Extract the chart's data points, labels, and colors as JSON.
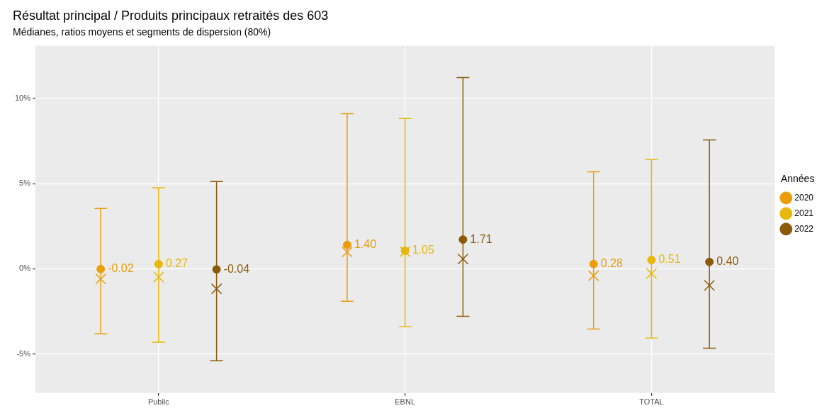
{
  "chart_data": {
    "type": "scatter",
    "title": "Résultat principal / Produits principaux retraités des 603",
    "subtitle": "Médianes, ratios moyens et segments de dispersion (80%)",
    "categories": [
      "Public",
      "EBNL",
      "TOTAL"
    ],
    "series": [
      {
        "name": "2020",
        "color": "#eb9d0b",
        "marker": "circle",
        "values": [
          -0.02,
          1.4,
          0.28
        ],
        "value_labels": [
          "-0.02",
          "1.40",
          "0.28"
        ],
        "errors": [
          [
            -3.82,
            3.54
          ],
          [
            -1.91,
            9.1
          ],
          [
            -3.54,
            5.69
          ]
        ]
      },
      {
        "color": "#eb9d0b",
        "marker": "cross",
        "values": [
          -0.6,
          0.98,
          -0.41
        ]
      },
      {
        "name": "2021",
        "color": "#e8b80c",
        "marker": "circle",
        "values": [
          0.27,
          1.05,
          0.51
        ],
        "value_labels": [
          "0.27",
          "1.05",
          "0.51"
        ],
        "errors": [
          [
            -4.31,
            4.76
          ],
          [
            -3.41,
            8.82
          ],
          [
            -4.07,
            6.42
          ]
        ]
      },
      {
        "color": "#e8b80c",
        "marker": "cross",
        "values": [
          -0.49,
          1.0,
          -0.28
        ]
      },
      {
        "name": "2022",
        "color": "#8c5a0a",
        "marker": "circle",
        "values": [
          -0.04,
          1.71,
          0.4
        ],
        "value_labels": [
          "-0.04",
          "1.71",
          "0.40"
        ],
        "errors": [
          [
            -5.41,
            5.12
          ],
          [
            -2.8,
            11.22
          ],
          [
            -4.67,
            7.56
          ]
        ]
      },
      {
        "color": "#8c5a0a",
        "marker": "cross",
        "values": [
          -1.18,
          0.57,
          -0.98
        ]
      }
    ],
    "ylim": [
      -7.3,
      13.1
    ],
    "yticks": [
      {
        "value": -5,
        "label": "-5%"
      },
      {
        "value": 0,
        "label": "0%"
      },
      {
        "value": 5,
        "label": "5%"
      },
      {
        "value": 10,
        "label": "10%"
      }
    ],
    "grid": true,
    "legend": "right",
    "legend_title": "Années"
  }
}
